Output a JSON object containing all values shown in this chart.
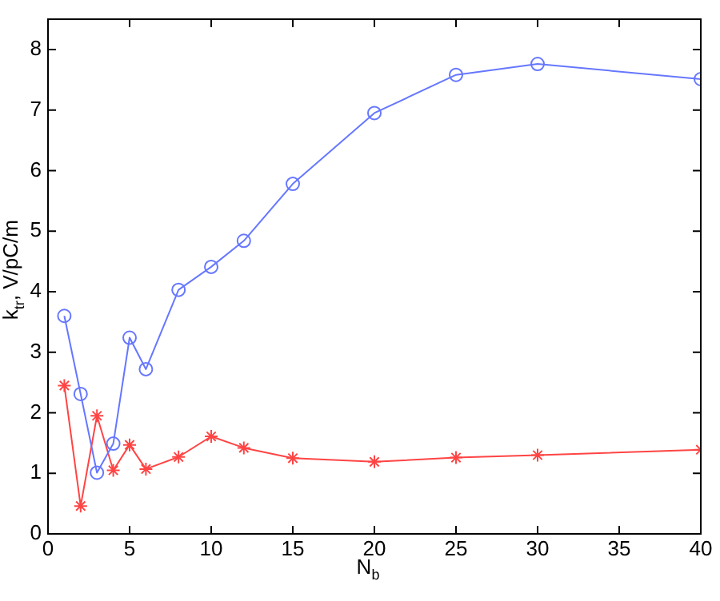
{
  "chart_data": {
    "type": "line",
    "xlabel": "N$_{b}$",
    "ylabel": "k$_{tr}$, V/pC/m",
    "x": [
      1,
      2,
      3,
      4,
      5,
      6,
      8,
      10,
      12,
      15,
      20,
      25,
      30,
      40
    ],
    "series": [
      {
        "color": "#6677ff",
        "marker": "circle",
        "values": [
          3.6,
          2.31,
          1.01,
          1.49,
          3.24,
          2.72,
          4.03,
          4.41,
          4.84,
          5.78,
          6.95,
          7.58,
          7.76,
          7.51
        ]
      },
      {
        "color": "#ff4444",
        "marker": "cross",
        "values": [
          2.45,
          0.46,
          1.95,
          1.05,
          1.47,
          1.07,
          1.27,
          1.61,
          1.42,
          1.25,
          1.19,
          1.26,
          1.3,
          1.39
        ]
      }
    ],
    "xlim": [
      0,
      40
    ],
    "xticks": [
      0,
      5,
      10,
      15,
      20,
      25,
      30,
      35,
      40
    ],
    "ylim": [
      0,
      8.5
    ],
    "yticks": [
      0,
      1,
      2,
      3,
      4,
      5,
      6,
      7,
      8
    ],
    "grid": false,
    "legend": false,
    "line_style": "solid"
  }
}
